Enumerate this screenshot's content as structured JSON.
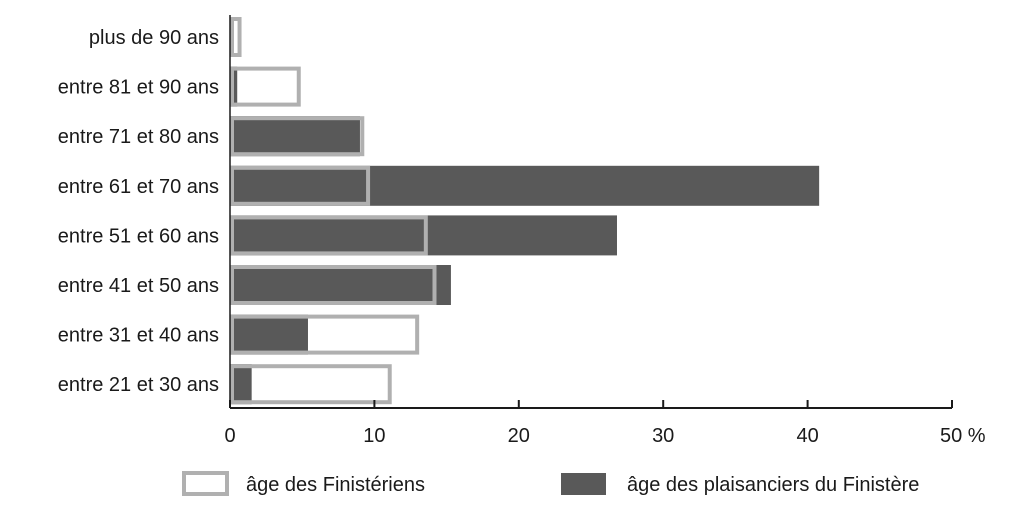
{
  "chart_data": {
    "type": "bar",
    "orientation": "horizontal",
    "categories": [
      "plus de 90 ans",
      "entre 81 et 90 ans",
      "entre 71 et 80 ans",
      "entre 61 et 70 ans",
      "entre 51 et 60 ans",
      "entre 41 et 50 ans",
      "entre 31 et 40 ans",
      "entre 21 et 30 ans"
    ],
    "series": [
      {
        "name": "âge des plaisanciers du Finistère",
        "style": "filled",
        "color": "#595959",
        "values": [
          0,
          0.5,
          9,
          40.8,
          26.8,
          15.3,
          5.4,
          1.5
        ]
      },
      {
        "name": "âge des Finistériens",
        "style": "outline",
        "color": "#b0b0b0",
        "values": [
          0.8,
          4.9,
          9.3,
          9.7,
          13.7,
          14.3,
          13.1,
          11.2
        ]
      }
    ],
    "xlim": [
      0,
      50
    ],
    "xticks": [
      "0",
      "10",
      "20",
      "30",
      "40",
      "50 %"
    ],
    "xtick_values": [
      0,
      10,
      20,
      30,
      40,
      50
    ],
    "grid": false,
    "legend_position": "bottom"
  }
}
